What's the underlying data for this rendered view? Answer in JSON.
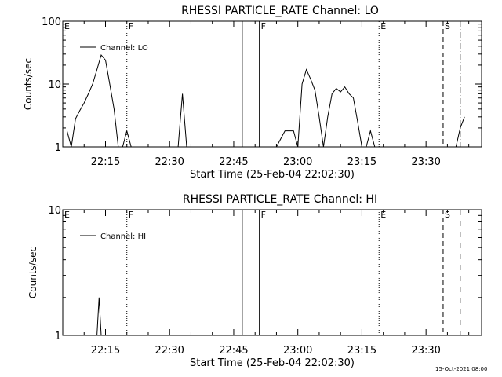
{
  "footer": {
    "timestamp": "15-Oct-2021 08:00"
  },
  "chart_data": [
    {
      "type": "line",
      "title": "RHESSI PARTICLE_RATE Channel: LO",
      "xlabel": "Start Time (25-Feb-04 22:02:30)",
      "ylabel": "Counts/sec",
      "yscale": "log",
      "ylim": [
        1,
        100
      ],
      "xlim_minutes_label": "22:05 to 23:43",
      "x_ticks": [
        "22:15",
        "22:30",
        "22:45",
        "23:00",
        "23:15",
        "23:30"
      ],
      "y_ticks": [
        "1",
        "10",
        "100"
      ],
      "legend": {
        "entries": [
          "Channel: LO"
        ],
        "placement": "top-left"
      },
      "markers": [
        {
          "label": "E",
          "time": "22:05",
          "style": "none"
        },
        {
          "label": "F",
          "time": "22:20",
          "style": "dotted"
        },
        {
          "label": "",
          "time": "22:47",
          "style": "solid"
        },
        {
          "label": "F",
          "time": "22:51",
          "style": "solid"
        },
        {
          "label": "E",
          "time": "23:19",
          "style": "dotted"
        },
        {
          "label": "S",
          "time": "23:34",
          "style": "dashed"
        },
        {
          "label": "",
          "time": "23:38",
          "style": "dashdot"
        }
      ],
      "series": [
        {
          "name": "Channel: LO",
          "segments": [
            [
              [
                "22:06",
                1.8
              ],
              [
                "22:07",
                1.0
              ],
              [
                "22:08",
                2.8
              ],
              [
                "22:09",
                3.8
              ],
              [
                "22:10",
                5
              ],
              [
                "22:11",
                7
              ],
              [
                "22:12",
                10
              ],
              [
                "22:13",
                17
              ],
              [
                "22:14",
                29
              ],
              [
                "22:15",
                24
              ],
              [
                "22:16",
                10
              ],
              [
                "22:17",
                4
              ],
              [
                "22:18",
                1.0
              ]
            ],
            [
              [
                "22:19",
                1.0
              ],
              [
                "22:20",
                1.8
              ],
              [
                "22:21",
                1.0
              ]
            ],
            [
              [
                "22:32",
                1.0
              ],
              [
                "22:33",
                7
              ],
              [
                "22:34",
                1.0
              ]
            ],
            [
              [
                "22:55",
                1.0
              ],
              [
                "22:57",
                1.8
              ],
              [
                "22:59",
                1.8
              ],
              [
                "23:00",
                1.0
              ],
              [
                "23:01",
                10
              ],
              [
                "23:02",
                17
              ],
              [
                "23:03",
                12
              ],
              [
                "23:04",
                8
              ],
              [
                "23:05",
                3
              ],
              [
                "23:06",
                1.0
              ],
              [
                "23:07",
                3
              ],
              [
                "23:08",
                7
              ],
              [
                "23:09",
                8.5
              ],
              [
                "23:10",
                7.5
              ],
              [
                "23:11",
                9
              ],
              [
                "23:12",
                7
              ],
              [
                "23:13",
                6
              ],
              [
                "23:14",
                2.5
              ],
              [
                "23:15",
                1.0
              ]
            ],
            [
              [
                "23:16",
                1.0
              ],
              [
                "23:17",
                1.8
              ],
              [
                "23:18",
                1.0
              ]
            ],
            [
              [
                "23:37",
                1.0
              ],
              [
                "23:38",
                2.0
              ],
              [
                "23:39",
                3.0
              ]
            ]
          ]
        }
      ]
    },
    {
      "type": "line",
      "title": "RHESSI PARTICLE_RATE Channel: HI",
      "xlabel": "Start Time (25-Feb-04 22:02:30)",
      "ylabel": "Counts/sec",
      "yscale": "log",
      "ylim": [
        1,
        10
      ],
      "x_ticks": [
        "22:15",
        "22:30",
        "22:45",
        "23:00",
        "23:15",
        "23:30"
      ],
      "y_ticks": [
        "1",
        "10"
      ],
      "legend": {
        "entries": [
          "Channel: HI"
        ],
        "placement": "top-left"
      },
      "markers": [
        {
          "label": "E",
          "time": "22:05",
          "style": "none"
        },
        {
          "label": "F",
          "time": "22:20",
          "style": "dotted"
        },
        {
          "label": "",
          "time": "22:47",
          "style": "solid"
        },
        {
          "label": "F",
          "time": "22:51",
          "style": "solid"
        },
        {
          "label": "E",
          "time": "23:19",
          "style": "dotted"
        },
        {
          "label": "S",
          "time": "23:34",
          "style": "dashed"
        },
        {
          "label": "",
          "time": "23:38",
          "style": "dashdot"
        }
      ],
      "series": [
        {
          "name": "Channel: HI",
          "segments": [
            [
              [
                "22:13",
                1.0
              ],
              [
                "22:13.5",
                2.0
              ],
              [
                "22:14",
                1.0
              ]
            ]
          ]
        }
      ]
    }
  ]
}
